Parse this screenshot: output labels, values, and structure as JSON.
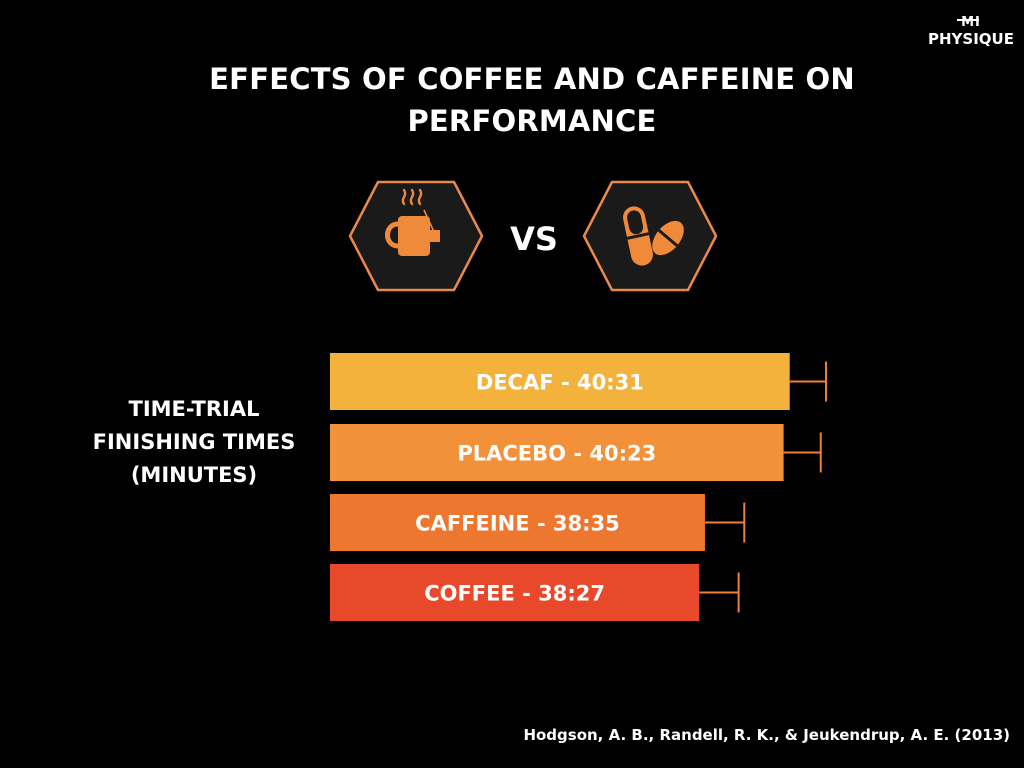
{
  "brand": {
    "line1": "MI",
    "line2": "PHYSIQUE"
  },
  "title": "EFFECTS OF COFFEE AND CAFFEINE ON PERFORMANCE",
  "icons": {
    "left": "coffee-mug-icon",
    "right": "capsule-pills-icon"
  },
  "vs_label": "VS",
  "side_label": "TIME-TRIAL FINISHING TIMES (MINUTES)",
  "citation": "Hodgson, A. B., Randell, R. K., & Jeukendrup, A. E. (2013)",
  "colors": {
    "background": "#000000",
    "hex_fill": "#1a1a1a",
    "hex_stroke": "#e98a4a",
    "icon_color": "#ef8a3a",
    "error_bar": "#ef7f3a",
    "bar_text": "#ffffff"
  },
  "chart_data": {
    "type": "bar",
    "orientation": "horizontal",
    "categories": [
      "DECAF",
      "PLACEBO",
      "CAFFEINE",
      "COFFEE"
    ],
    "labels": [
      "DECAF - 40:31",
      "PLACEBO - 40:23",
      "CAFFEINE - 38:35",
      "COFFEE - 38:27"
    ],
    "values_minutes": [
      40.52,
      40.38,
      38.58,
      38.45
    ],
    "error_bar_upper_minutes": [
      41.35,
      41.23,
      39.48,
      39.35
    ],
    "bar_colors": [
      "#f3b23c",
      "#f2913a",
      "#ee7730",
      "#e8492a"
    ],
    "xlim": [
      30.0,
      42.0
    ],
    "grid": false,
    "legend": "none"
  }
}
